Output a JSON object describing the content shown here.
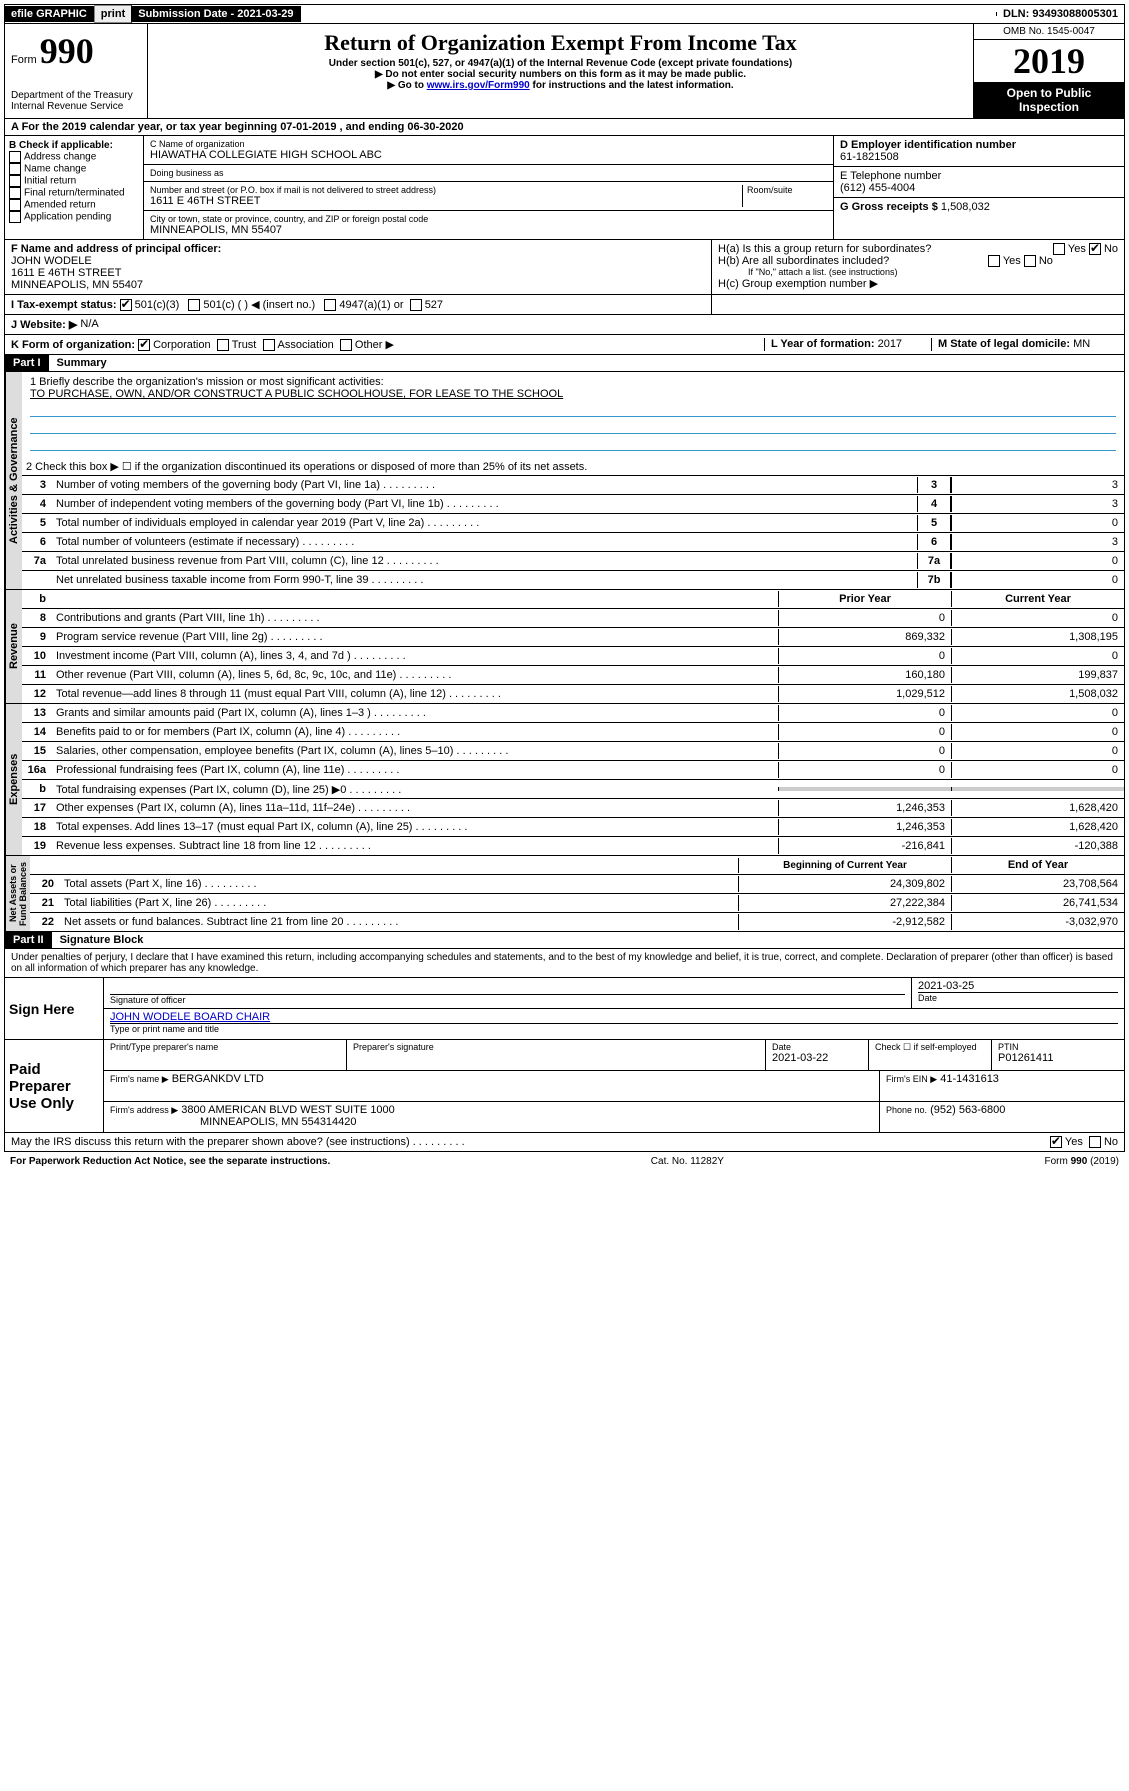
{
  "topbar": {
    "efile": "efile GRAPHIC",
    "print": "print",
    "subdate_label": "Submission Date - 2021-03-29",
    "dln": "DLN: 93493088005301"
  },
  "header": {
    "form_label": "Form",
    "form_num": "990",
    "title": "Return of Organization Exempt From Income Tax",
    "sub1": "Under section 501(c), 527, or 4947(a)(1) of the Internal Revenue Code (except private foundations)",
    "sub2": "▶ Do not enter social security numbers on this form as it may be made public.",
    "sub3_pre": "▶ Go to ",
    "sub3_link": "www.irs.gov/Form990",
    "sub3_post": " for instructions and the latest information.",
    "dept": "Department of the Treasury\nInternal Revenue Service",
    "omb": "OMB No. 1545-0047",
    "year": "2019",
    "open": "Open to Public Inspection"
  },
  "rowA": "A For the 2019 calendar year, or tax year beginning 07-01-2019   , and ending 06-30-2020",
  "B": {
    "label": "B Check if applicable:",
    "opts": [
      "Address change",
      "Name change",
      "Initial return",
      "Final return/terminated",
      "Amended return",
      "Application pending"
    ]
  },
  "C": {
    "name_lbl": "C Name of organization",
    "name": "HIAWATHA COLLEGIATE HIGH SCHOOL ABC",
    "dba_lbl": "Doing business as",
    "addr_lbl": "Number and street (or P.O. box if mail is not delivered to street address)",
    "addr": "1611 E 46TH STREET",
    "room_lbl": "Room/suite",
    "city_lbl": "City or town, state or province, country, and ZIP or foreign postal code",
    "city": "MINNEAPOLIS, MN  55407"
  },
  "D": {
    "lbl": "D Employer identification number",
    "val": "61-1821508"
  },
  "E": {
    "lbl": "E Telephone number",
    "val": "(612) 455-4004"
  },
  "G": {
    "lbl": "G Gross receipts $",
    "val": "1,508,032"
  },
  "F": {
    "lbl": "F  Name and address of principal officer:",
    "name": "JOHN WODELE",
    "addr1": "1611 E 46TH STREET",
    "addr2": "MINNEAPOLIS, MN  55407"
  },
  "H": {
    "a": "H(a)  Is this a group return for subordinates?",
    "b": "H(b)  Are all subordinates included?",
    "b_note": "If \"No,\" attach a list. (see instructions)",
    "c": "H(c)  Group exemption number ▶"
  },
  "I": {
    "lbl": "I  Tax-exempt status:",
    "opts": [
      "501(c)(3)",
      "501(c) (  ) ◀ (insert no.)",
      "4947(a)(1) or",
      "527"
    ]
  },
  "J": {
    "lbl": "J  Website: ▶",
    "val": "N/A"
  },
  "K": {
    "lbl": "K Form of organization:",
    "opts": [
      "Corporation",
      "Trust",
      "Association",
      "Other ▶"
    ]
  },
  "L": {
    "lbl": "L Year of formation:",
    "val": "2017"
  },
  "M": {
    "lbl": "M State of legal domicile:",
    "val": "MN"
  },
  "part1": {
    "title": "Part I",
    "subtitle": "Summary",
    "line1_lbl": "1  Briefly describe the organization's mission or most significant activities:",
    "line1_val": "TO PURCHASE, OWN, AND/OR CONSTRUCT A PUBLIC SCHOOLHOUSE, FOR LEASE TO THE SCHOOL",
    "line2": "2   Check this box ▶ ☐  if the organization discontinued its operations or disposed of more than 25% of its net assets.",
    "rows_single": [
      {
        "n": "3",
        "d": "Number of voting members of the governing body (Part VI, line 1a)",
        "box": "3",
        "v": "3"
      },
      {
        "n": "4",
        "d": "Number of independent voting members of the governing body (Part VI, line 1b)",
        "box": "4",
        "v": "3"
      },
      {
        "n": "5",
        "d": "Total number of individuals employed in calendar year 2019 (Part V, line 2a)",
        "box": "5",
        "v": "0"
      },
      {
        "n": "6",
        "d": "Total number of volunteers (estimate if necessary)",
        "box": "6",
        "v": "3"
      },
      {
        "n": "7a",
        "d": "Total unrelated business revenue from Part VIII, column (C), line 12",
        "box": "7a",
        "v": "0"
      },
      {
        "n": "",
        "d": "Net unrelated business taxable income from Form 990-T, line 39",
        "box": "7b",
        "v": "0"
      }
    ],
    "two_head": {
      "py": "Prior Year",
      "cy": "Current Year"
    },
    "revenue_rows": [
      {
        "n": "8",
        "d": "Contributions and grants (Part VIII, line 1h)",
        "py": "0",
        "cy": "0"
      },
      {
        "n": "9",
        "d": "Program service revenue (Part VIII, line 2g)",
        "py": "869,332",
        "cy": "1,308,195"
      },
      {
        "n": "10",
        "d": "Investment income (Part VIII, column (A), lines 3, 4, and 7d )",
        "py": "0",
        "cy": "0"
      },
      {
        "n": "11",
        "d": "Other revenue (Part VIII, column (A), lines 5, 6d, 8c, 9c, 10c, and 11e)",
        "py": "160,180",
        "cy": "199,837"
      },
      {
        "n": "12",
        "d": "Total revenue—add lines 8 through 11 (must equal Part VIII, column (A), line 12)",
        "py": "1,029,512",
        "cy": "1,508,032"
      }
    ],
    "expense_rows": [
      {
        "n": "13",
        "d": "Grants and similar amounts paid (Part IX, column (A), lines 1–3 )",
        "py": "0",
        "cy": "0"
      },
      {
        "n": "14",
        "d": "Benefits paid to or for members (Part IX, column (A), line 4)",
        "py": "0",
        "cy": "0"
      },
      {
        "n": "15",
        "d": "Salaries, other compensation, employee benefits (Part IX, column (A), lines 5–10)",
        "py": "0",
        "cy": "0"
      },
      {
        "n": "16a",
        "d": "Professional fundraising fees (Part IX, column (A), line 11e)",
        "py": "0",
        "cy": "0"
      },
      {
        "n": "b",
        "d": "Total fundraising expenses (Part IX, column (D), line 25) ▶0",
        "py": "",
        "cy": "",
        "shaded": true
      },
      {
        "n": "17",
        "d": "Other expenses (Part IX, column (A), lines 11a–11d, 11f–24e)",
        "py": "1,246,353",
        "cy": "1,628,420"
      },
      {
        "n": "18",
        "d": "Total expenses. Add lines 13–17 (must equal Part IX, column (A), line 25)",
        "py": "1,246,353",
        "cy": "1,628,420"
      },
      {
        "n": "19",
        "d": "Revenue less expenses. Subtract line 18 from line 12",
        "py": "-216,841",
        "cy": "-120,388"
      }
    ],
    "na_head": {
      "py": "Beginning of Current Year",
      "cy": "End of Year"
    },
    "na_rows": [
      {
        "n": "20",
        "d": "Total assets (Part X, line 16)",
        "py": "24,309,802",
        "cy": "23,708,564"
      },
      {
        "n": "21",
        "d": "Total liabilities (Part X, line 26)",
        "py": "27,222,384",
        "cy": "26,741,534"
      },
      {
        "n": "22",
        "d": "Net assets or fund balances. Subtract line 21 from line 20",
        "py": "-2,912,582",
        "cy": "-3,032,970"
      }
    ]
  },
  "part2": {
    "title": "Part II",
    "subtitle": "Signature Block",
    "perjury": "Under penalties of perjury, I declare that I have examined this return, including accompanying schedules and statements, and to the best of my knowledge and belief, it is true, correct, and complete. Declaration of preparer (other than officer) is based on all information of which preparer has any knowledge."
  },
  "sign": {
    "here": "Sign Here",
    "sig_lbl": "Signature of officer",
    "date": "2021-03-25",
    "date_lbl": "Date",
    "name": "JOHN WODELE  BOARD CHAIR",
    "name_lbl": "Type or print name and title"
  },
  "paid": {
    "title": "Paid Preparer Use Only",
    "prep_name_lbl": "Print/Type preparer's name",
    "prep_sig_lbl": "Preparer's signature",
    "prep_date_lbl": "Date",
    "prep_date": "2021-03-22",
    "self_lbl": "Check ☐ if self-employed",
    "ptin_lbl": "PTIN",
    "ptin": "P01261411",
    "firm_name_lbl": "Firm's name   ▶",
    "firm_name": "BERGANKDV LTD",
    "firm_ein_lbl": "Firm's EIN ▶",
    "firm_ein": "41-1431613",
    "firm_addr_lbl": "Firm's address ▶",
    "firm_addr": "3800 AMERICAN BLVD WEST SUITE 1000",
    "firm_city": "MINNEAPOLIS, MN  554314420",
    "phone_lbl": "Phone no.",
    "phone": "(952) 563-6800"
  },
  "discuss": "May the IRS discuss this return with the preparer shown above? (see instructions)",
  "footer": {
    "left": "For Paperwork Reduction Act Notice, see the separate instructions.",
    "mid": "Cat. No. 11282Y",
    "right": "Form 990 (2019)"
  }
}
